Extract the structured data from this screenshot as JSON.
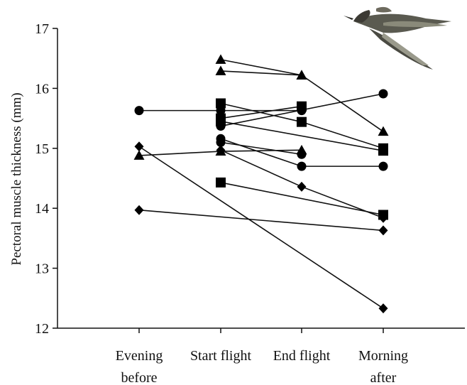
{
  "chart_data": {
    "type": "line",
    "title": "",
    "xlabel": "",
    "ylabel": "Pectoral muscle thickness (mm)",
    "ylim": [
      12,
      17
    ],
    "yticks": [
      "12",
      "13",
      "14",
      "15",
      "16",
      "17"
    ],
    "categories": [
      "Evening\nbefore",
      "Start flight",
      "End flight",
      "Morning\nafter"
    ],
    "grid": false,
    "legend": "none",
    "series": [
      {
        "marker": "circle",
        "values": [
          15.63,
          15.63,
          15.63,
          null
        ]
      },
      {
        "marker": "circle",
        "values": [
          null,
          15.37,
          null,
          15.91
        ]
      },
      {
        "marker": "circle",
        "values": [
          null,
          15.16,
          14.7,
          14.7
        ]
      },
      {
        "marker": "circle",
        "values": [
          null,
          15.1,
          14.9,
          null
        ]
      },
      {
        "marker": "triangle",
        "values": [
          14.88,
          14.95,
          14.97,
          null
        ]
      },
      {
        "marker": "triangle",
        "values": [
          null,
          16.48,
          16.22,
          15.28
        ]
      },
      {
        "marker": "triangle",
        "values": [
          null,
          16.29,
          16.22,
          null
        ]
      },
      {
        "marker": "square",
        "values": [
          null,
          15.75,
          15.44,
          15.0
        ]
      },
      {
        "marker": "square",
        "values": [
          null,
          15.5,
          15.7,
          null
        ]
      },
      {
        "marker": "square",
        "values": [
          null,
          15.45,
          null,
          14.96
        ]
      },
      {
        "marker": "square",
        "values": [
          null,
          14.43,
          null,
          13.89
        ]
      },
      {
        "marker": "diamond",
        "values": [
          15.03,
          null,
          null,
          12.33
        ]
      },
      {
        "marker": "diamond",
        "values": [
          13.97,
          null,
          null,
          13.63
        ]
      },
      {
        "marker": "diamond",
        "values": [
          null,
          14.97,
          14.36,
          13.84
        ]
      }
    ]
  },
  "icons": {
    "corner_image": "sandpiper-bird-in-flight"
  }
}
